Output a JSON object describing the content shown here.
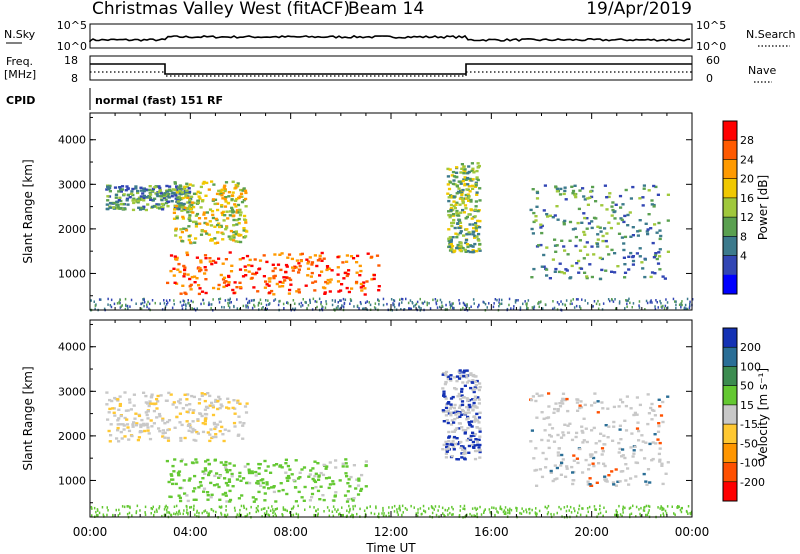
{
  "header": {
    "title": "Christmas Valley West (fitACF)",
    "beam": "Beam 14",
    "date": "19/Apr/2019"
  },
  "top_panels": {
    "nsky_label": "N.Sky",
    "nsky_ticks": [
      "10^5",
      "10^0"
    ],
    "nsearch_label": "N.Search",
    "nsearch_ticks": [
      "10^5",
      "10^0"
    ],
    "freq_label": [
      "Freq.",
      "[MHz]"
    ],
    "freq_ticks": [
      "18",
      "8"
    ],
    "nave_label": "Nave",
    "nave_ticks": [
      "60",
      "0"
    ],
    "cpid_label": "CPID",
    "cpid_value": "normal (fast) 151 RF"
  },
  "chart_data": [
    {
      "type": "heatmap",
      "panel": "power",
      "ylabel": "Slant Range [km]",
      "ylim": [
        180,
        4600
      ],
      "yticks": [
        "4000",
        "3000",
        "2000",
        "1000"
      ],
      "xlabel": "Time UT",
      "xticks": [
        "00:00",
        "04:00",
        "08:00",
        "12:00",
        "16:00",
        "20:00",
        "00:00"
      ],
      "colorbar_label": "Power [dB]",
      "colorbar_ticks": [
        "28",
        "24",
        "20",
        "16",
        "12",
        "8",
        "4"
      ],
      "colorbar_colors": [
        "#ff0000",
        "#ff5a00",
        "#ff9a00",
        "#f0c800",
        "#a0c83c",
        "#5aa050",
        "#3c7a8c",
        "#3246b4",
        "#0000ff"
      ],
      "regions": [
        {
          "hours": [
            0.6,
            4.0
          ],
          "range": [
            2450,
            3000
          ],
          "level": "blue-green"
        },
        {
          "hours": [
            3.3,
            6.2
          ],
          "range": [
            1700,
            3100
          ],
          "level": "green-orange"
        },
        {
          "hours": [
            3.0,
            11.5
          ],
          "range": [
            550,
            1500
          ],
          "level": "orange-red"
        },
        {
          "hours": [
            14.2,
            15.5
          ],
          "range": [
            1500,
            3500
          ],
          "level": "green"
        },
        {
          "hours": [
            17.5,
            23.0
          ],
          "range": [
            900,
            3000
          ],
          "level": "blue-green"
        }
      ]
    },
    {
      "type": "heatmap",
      "panel": "velocity",
      "ylabel": "Slant Range [km]",
      "ylim": [
        180,
        4600
      ],
      "yticks": [
        "4000",
        "3000",
        "2000",
        "1000"
      ],
      "xlabel": "Time UT",
      "xticks": [
        "00:00",
        "04:00",
        "08:00",
        "12:00",
        "16:00",
        "20:00",
        "00:00"
      ],
      "colorbar_label": "Velocity [m s⁻¹]",
      "colorbar_ticks": [
        "200",
        "100",
        "50",
        "15",
        "-15",
        "-50",
        "-100",
        "-200"
      ],
      "colorbar_colors": [
        "#1432b4",
        "#2a6e96",
        "#3c8c50",
        "#64c832",
        "#c8c8c8",
        "#ffc832",
        "#ff9600",
        "#ff5000",
        "#ff0000"
      ],
      "regions": [
        {
          "hours": [
            0.6,
            6.2
          ],
          "range": [
            1900,
            3000
          ],
          "level": "grey-yellow"
        },
        {
          "hours": [
            3.0,
            11.0
          ],
          "range": [
            550,
            1500
          ],
          "level": "green"
        },
        {
          "hours": [
            14.0,
            15.5
          ],
          "range": [
            1500,
            3500
          ],
          "level": "grey-blue"
        },
        {
          "hours": [
            17.5,
            23.0
          ],
          "range": [
            900,
            3000
          ],
          "level": "grey"
        }
      ]
    }
  ]
}
